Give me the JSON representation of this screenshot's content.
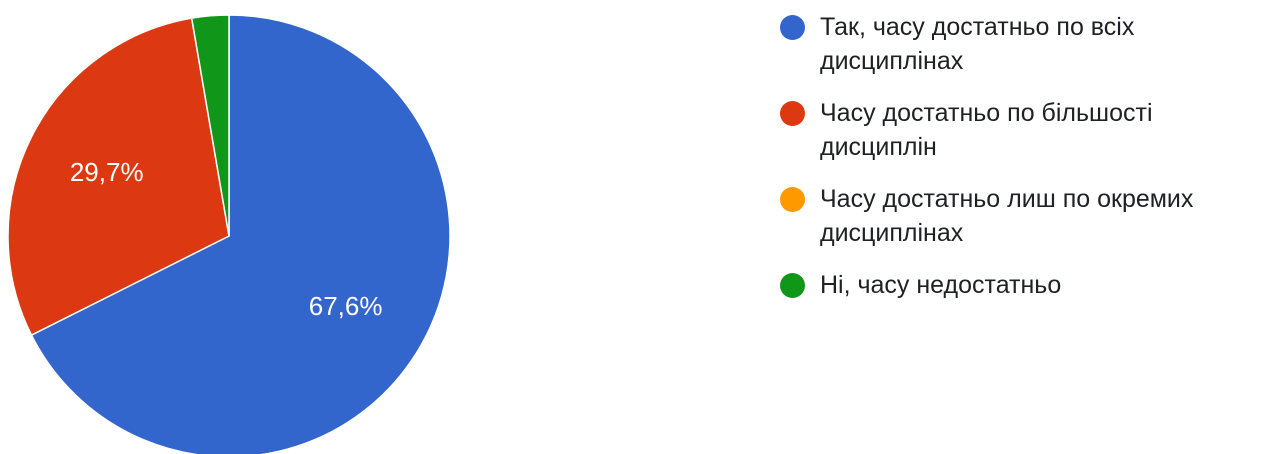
{
  "chart_data": {
    "type": "pie",
    "title": "",
    "legend_position": "right",
    "slices": [
      {
        "label": "Так, часу достатньо по всіх дисциплінах",
        "value": 67.6,
        "value_label": "67,6%",
        "color": "#3366cc"
      },
      {
        "label": "Часу достатньо по більшості дисциплін",
        "value": 29.7,
        "value_label": "29,7%",
        "color": "#dc3912"
      },
      {
        "label": "Часу достатньо лиш по окремих дисциплінах",
        "value": 0,
        "value_label": "",
        "color": "#ff9900"
      },
      {
        "label": "Ні, часу недостатньо",
        "value": 2.7,
        "value_label": "",
        "color": "#109618"
      }
    ]
  }
}
